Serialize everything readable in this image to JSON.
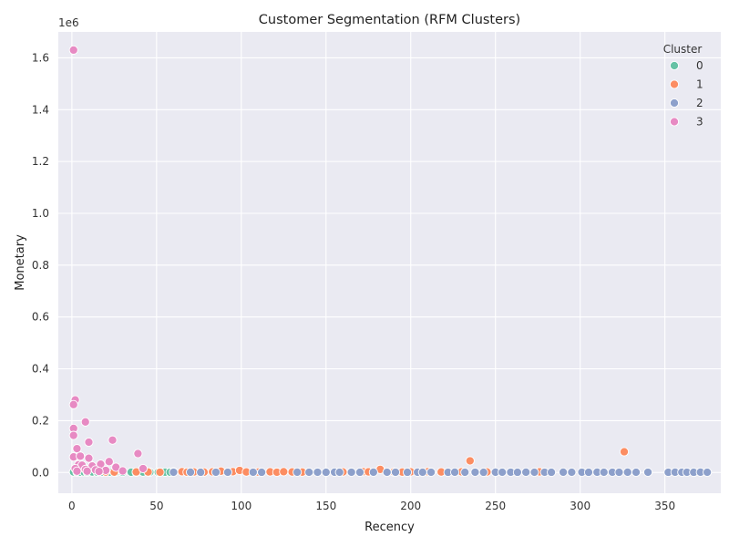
{
  "chart_data": {
    "type": "scatter",
    "title": "Customer Segmentation (RFM Clusters)",
    "xlabel": "Recency",
    "ylabel": "Monetary",
    "y_offset_label": "1e6",
    "xlim": [
      -8,
      383
    ],
    "ylim": [
      -80000,
      1700000
    ],
    "x_ticks": [
      0,
      50,
      100,
      150,
      200,
      250,
      300,
      350
    ],
    "y_ticks": [
      0,
      200000,
      400000,
      600000,
      800000,
      1000000,
      1200000,
      1400000,
      1600000
    ],
    "y_tick_labels": [
      "0.0",
      "0.2",
      "0.4",
      "0.6",
      "0.8",
      "1.0",
      "1.2",
      "1.4",
      "1.6"
    ],
    "grid": true,
    "legend": {
      "title": "Cluster",
      "position": "top-right"
    },
    "series": [
      {
        "name": "0",
        "color": "#66c2a5",
        "points": [
          [
            1,
            2000
          ],
          [
            3,
            1500
          ],
          [
            5,
            1000
          ],
          [
            7,
            2500
          ],
          [
            9,
            1200
          ],
          [
            12,
            1800
          ],
          [
            15,
            900
          ],
          [
            18,
            1500
          ],
          [
            22,
            1100
          ],
          [
            26,
            1400
          ],
          [
            30,
            1000
          ],
          [
            35,
            1200
          ],
          [
            38,
            800
          ],
          [
            42,
            1500
          ],
          [
            46,
            1000
          ],
          [
            51,
            900
          ],
          [
            55,
            1300
          ],
          [
            58,
            1000
          ]
        ]
      },
      {
        "name": "1",
        "color": "#fc8d62",
        "points": [
          [
            20,
            2000
          ],
          [
            25,
            1500
          ],
          [
            38,
            2200
          ],
          [
            45,
            1800
          ],
          [
            52,
            1000
          ],
          [
            60,
            2500
          ],
          [
            65,
            3000
          ],
          [
            68,
            1200
          ],
          [
            72,
            2000
          ],
          [
            78,
            1500
          ],
          [
            83,
            2500
          ],
          [
            88,
            5000
          ],
          [
            95,
            3000
          ],
          [
            99,
            8000
          ],
          [
            103,
            2000
          ],
          [
            110,
            1500
          ],
          [
            117,
            2500
          ],
          [
            121,
            1000
          ],
          [
            125,
            3000
          ],
          [
            130,
            2000
          ],
          [
            136,
            1500
          ],
          [
            160,
            2000
          ],
          [
            172,
            3000
          ],
          [
            175,
            2500
          ],
          [
            182,
            12000
          ],
          [
            190,
            2000
          ],
          [
            195,
            1500
          ],
          [
            200,
            2500
          ],
          [
            210,
            3000
          ],
          [
            218,
            2000
          ],
          [
            230,
            2500
          ],
          [
            235,
            45000
          ],
          [
            245,
            2000
          ],
          [
            276,
            2500
          ],
          [
            326,
            80000
          ]
        ]
      },
      {
        "name": "2",
        "color": "#8da0cb",
        "points": [
          [
            60,
            1000
          ],
          [
            70,
            1200
          ],
          [
            76,
            800
          ],
          [
            85,
            1000
          ],
          [
            92,
            900
          ],
          [
            107,
            1000
          ],
          [
            112,
            800
          ],
          [
            133,
            1100
          ],
          [
            140,
            900
          ],
          [
            145,
            1000
          ],
          [
            150,
            800
          ],
          [
            155,
            1200
          ],
          [
            158,
            900
          ],
          [
            165,
            1000
          ],
          [
            170,
            800
          ],
          [
            178,
            1100
          ],
          [
            186,
            900
          ],
          [
            191,
            1000
          ],
          [
            198,
            800
          ],
          [
            204,
            1200
          ],
          [
            207,
            900
          ],
          [
            212,
            1000
          ],
          [
            222,
            800
          ],
          [
            226,
            1100
          ],
          [
            232,
            900
          ],
          [
            238,
            1000
          ],
          [
            243,
            800
          ],
          [
            250,
            1200
          ],
          [
            254,
            900
          ],
          [
            259,
            1000
          ],
          [
            263,
            800
          ],
          [
            268,
            1100
          ],
          [
            273,
            900
          ],
          [
            279,
            1000
          ],
          [
            283,
            800
          ],
          [
            290,
            1200
          ],
          [
            295,
            900
          ],
          [
            301,
            1000
          ],
          [
            305,
            800
          ],
          [
            310,
            1100
          ],
          [
            314,
            900
          ],
          [
            319,
            1000
          ],
          [
            323,
            800
          ],
          [
            328,
            1100
          ],
          [
            333,
            900
          ],
          [
            340,
            1000
          ],
          [
            352,
            800
          ],
          [
            356,
            1100
          ],
          [
            360,
            900
          ],
          [
            363,
            1000
          ],
          [
            367,
            800
          ],
          [
            371,
            1100
          ],
          [
            375,
            900
          ]
        ]
      },
      {
        "name": "3",
        "color": "#e78ac3",
        "points": [
          [
            1,
            1630000
          ],
          [
            2,
            280000
          ],
          [
            1,
            262000
          ],
          [
            8,
            195000
          ],
          [
            1,
            170000
          ],
          [
            1,
            143000
          ],
          [
            24,
            125000
          ],
          [
            10,
            117000
          ],
          [
            39,
            73000
          ],
          [
            3,
            92000
          ],
          [
            1,
            60000
          ],
          [
            5,
            63000
          ],
          [
            10,
            55000
          ],
          [
            22,
            42000
          ],
          [
            4,
            30000
          ],
          [
            6,
            28000
          ],
          [
            17,
            32000
          ],
          [
            12,
            25000
          ],
          [
            26,
            20000
          ],
          [
            42,
            15000
          ],
          [
            2,
            15000
          ],
          [
            8,
            12000
          ],
          [
            14,
            10000
          ],
          [
            20,
            8000
          ],
          [
            30,
            6000
          ],
          [
            3,
            5000
          ],
          [
            9,
            5000
          ],
          [
            16,
            4000
          ]
        ]
      }
    ]
  }
}
